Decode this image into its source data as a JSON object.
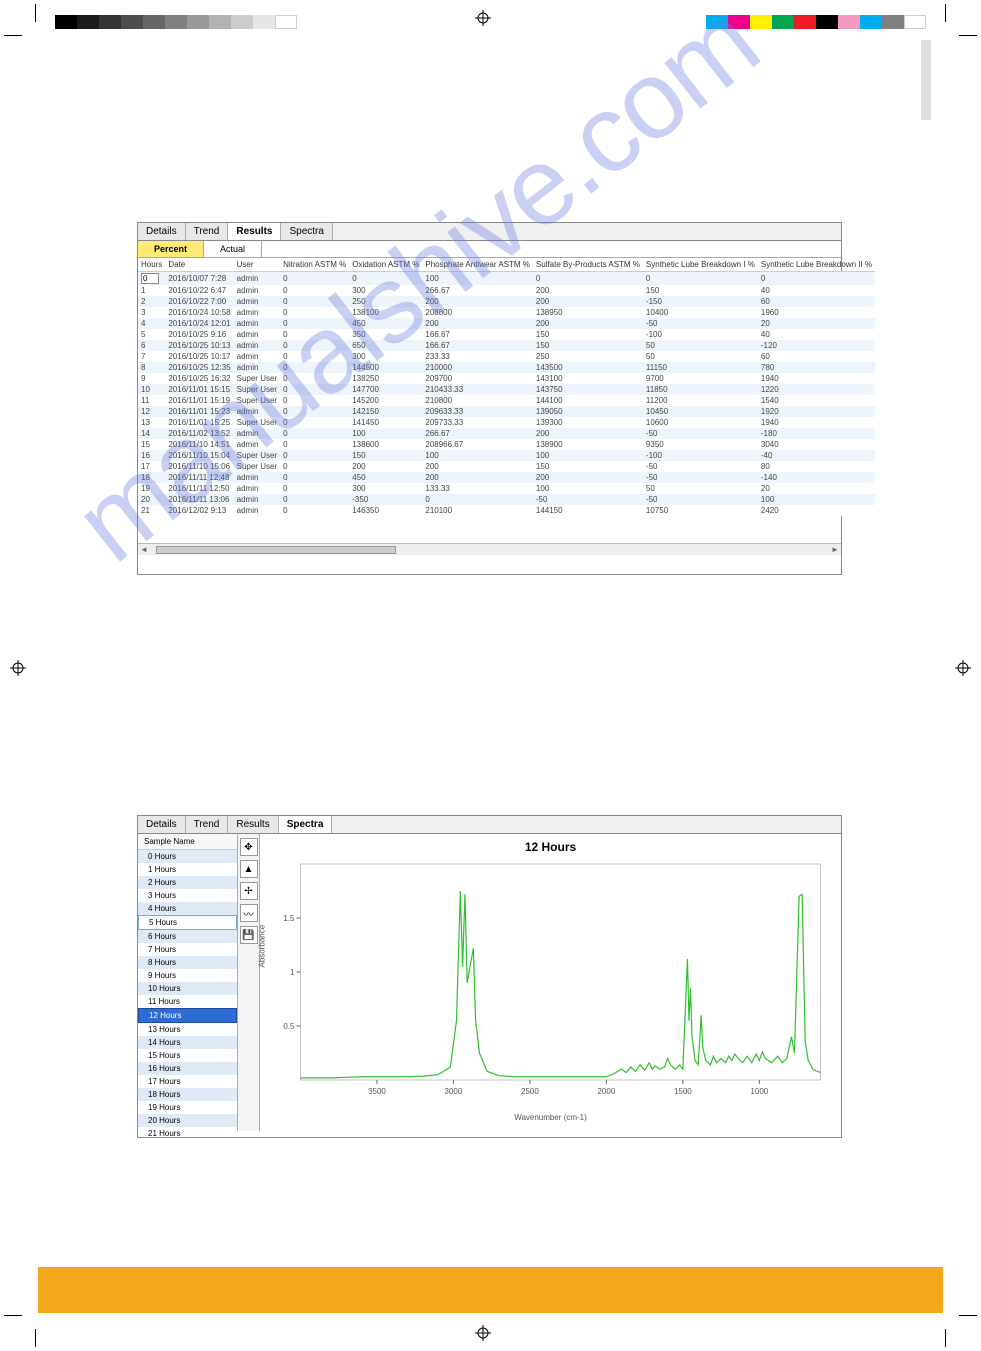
{
  "watermark_text": "manualshive.com",
  "print_marks": {
    "grayscale_swatches": [
      "#000000",
      "#1a1a1a",
      "#333333",
      "#4d4d4d",
      "#666666",
      "#808080",
      "#999999",
      "#b3b3b3",
      "#cccccc",
      "#e6e6e6",
      "#ffffff"
    ],
    "color_swatches": [
      "#00aeef",
      "#ec008c",
      "#fff200",
      "#00a651",
      "#ed1c24",
      "#000000",
      "#f49ac1",
      "#00adee",
      "#808080",
      "#ffffff"
    ]
  },
  "tabs": {
    "details": "Details",
    "trend": "Trend",
    "results": "Results",
    "spectra": "Spectra"
  },
  "results_panel": {
    "active_tab": "Results",
    "subtabs": {
      "percent": "Percent",
      "actual": "Actual",
      "active": "Percent"
    },
    "columns": [
      "Hours",
      "Date",
      "User",
      "Nitration ASTM  %",
      "Oxidation ASTM  %",
      "Phosphate Antiwear ASTM  %",
      "Sulfate By-Products ASTM  %",
      "Synthetic Lube Breakdown I %",
      "Synthetic Lube Breakdown II %"
    ],
    "rows": [
      [
        "0",
        "2016/10/07 7:28",
        "admin",
        "0",
        "0",
        "100",
        "0",
        "0",
        "0"
      ],
      [
        "1",
        "2016/10/22 6:47",
        "admin",
        "0",
        "300",
        "266.67",
        "200",
        "150",
        "40"
      ],
      [
        "2",
        "2016/10/22 7:00",
        "admin",
        "0",
        "250",
        "200",
        "200",
        "-150",
        "60"
      ],
      [
        "3",
        "2016/10/24 10:58",
        "admin",
        "0",
        "138100",
        "208800",
        "138950",
        "10400",
        "1960"
      ],
      [
        "4",
        "2016/10/24 12:01",
        "admin",
        "0",
        "450",
        "200",
        "200",
        "-50",
        "20"
      ],
      [
        "5",
        "2016/10/25 9:16",
        "admin",
        "0",
        "350",
        "166.67",
        "150",
        "-100",
        "40"
      ],
      [
        "6",
        "2016/10/25 10:13",
        "admin",
        "0",
        "650",
        "166.67",
        "150",
        "50",
        "-120"
      ],
      [
        "7",
        "2016/10/25 10:17",
        "admin",
        "0",
        "300",
        "233.33",
        "250",
        "50",
        "60"
      ],
      [
        "8",
        "2016/10/25 12:35",
        "admin",
        "0",
        "144500",
        "210000",
        "143500",
        "11150",
        "780"
      ],
      [
        "9",
        "2016/10/25 16:32",
        "Super User",
        "0",
        "138250",
        "209700",
        "143100",
        "9700",
        "1940"
      ],
      [
        "10",
        "2016/11/01 15:15",
        "Super User",
        "0",
        "147700",
        "210433.33",
        "143750",
        "11850",
        "1220"
      ],
      [
        "11",
        "2016/11/01 15:19",
        "Super User",
        "0",
        "145200",
        "210800",
        "144100",
        "11200",
        "1540"
      ],
      [
        "12",
        "2016/11/01 15:23",
        "admin",
        "0",
        "142150",
        "209633.33",
        "139050",
        "10450",
        "1920"
      ],
      [
        "13",
        "2016/11/01 15:25",
        "Super User",
        "0",
        "141450",
        "209733.33",
        "139300",
        "10600",
        "1940"
      ],
      [
        "14",
        "2016/11/02 13:52",
        "admin",
        "0",
        "100",
        "266.67",
        "200",
        "-50",
        "-180"
      ],
      [
        "15",
        "2016/11/10 14:51",
        "admin",
        "0",
        "138600",
        "208966.67",
        "138900",
        "9350",
        "3040"
      ],
      [
        "16",
        "2016/11/10 15:04",
        "Super User",
        "0",
        "150",
        "100",
        "100",
        "-100",
        "-40"
      ],
      [
        "17",
        "2016/11/10 15:06",
        "Super User",
        "0",
        "200",
        "200",
        "150",
        "-50",
        "80"
      ],
      [
        "18",
        "2016/11/11 12:48",
        "admin",
        "0",
        "450",
        "200",
        "200",
        "-50",
        "-140"
      ],
      [
        "19",
        "2016/11/11 12:50",
        "admin",
        "0",
        "300",
        "133.33",
        "100",
        "50",
        "20"
      ],
      [
        "20",
        "2016/11/11 13:06",
        "admin",
        "0",
        "-350",
        "0",
        "-50",
        "-50",
        "100"
      ],
      [
        "21",
        "2016/12/02 9:13",
        "admin",
        "0",
        "146350",
        "210100",
        "144150",
        "10750",
        "2420"
      ]
    ]
  },
  "spectra_panel": {
    "active_tab": "Spectra",
    "sample_header": "Sample Name",
    "samples": [
      "0 Hours",
      "1 Hours",
      "2 Hours",
      "3 Hours",
      "4 Hours",
      "5 Hours",
      "6 Hours",
      "7 Hours",
      "8 Hours",
      "9 Hours",
      "10 Hours",
      "11 Hours",
      "12 Hours",
      "13 Hours",
      "14 Hours",
      "15 Hours",
      "16 Hours",
      "17 Hours",
      "18 Hours",
      "19 Hours",
      "20 Hours",
      "21 Hours"
    ],
    "selected_index": 12,
    "boxed_index": 5,
    "tools": [
      "move",
      "eject",
      "pan",
      "zoom",
      "save"
    ],
    "chart": {
      "title": "12 Hours",
      "ylabel": "Absorbance",
      "xlabel": "Wavenumber (cm-1)",
      "line_color": "#2fbf2f",
      "background_color": "#ffffff",
      "grid_color": "#cccccc",
      "x_reversed": true,
      "xlim": [
        600,
        4000
      ],
      "ylim": [
        0,
        2.0
      ],
      "xticks": [
        3500,
        3000,
        2500,
        2000,
        1500,
        1000
      ],
      "yticks": [
        0.5,
        1.0,
        1.5
      ],
      "title_fontsize": 12,
      "label_fontsize": 8,
      "line_width": 1.2,
      "data": [
        [
          4000,
          0.02
        ],
        [
          3900,
          0.02
        ],
        [
          3800,
          0.02
        ],
        [
          3700,
          0.025
        ],
        [
          3600,
          0.03
        ],
        [
          3500,
          0.03
        ],
        [
          3400,
          0.03
        ],
        [
          3300,
          0.03
        ],
        [
          3200,
          0.035
        ],
        [
          3100,
          0.05
        ],
        [
          3020,
          0.12
        ],
        [
          2980,
          0.55
        ],
        [
          2955,
          1.75
        ],
        [
          2940,
          1.05
        ],
        [
          2925,
          1.72
        ],
        [
          2910,
          0.9
        ],
        [
          2870,
          1.22
        ],
        [
          2855,
          0.55
        ],
        [
          2830,
          0.25
        ],
        [
          2780,
          0.08
        ],
        [
          2700,
          0.04
        ],
        [
          2600,
          0.03
        ],
        [
          2500,
          0.03
        ],
        [
          2400,
          0.03
        ],
        [
          2300,
          0.03
        ],
        [
          2200,
          0.03
        ],
        [
          2100,
          0.03
        ],
        [
          2000,
          0.03
        ],
        [
          1950,
          0.06
        ],
        [
          1900,
          0.1
        ],
        [
          1870,
          0.07
        ],
        [
          1840,
          0.12
        ],
        [
          1810,
          0.08
        ],
        [
          1780,
          0.14
        ],
        [
          1750,
          0.09
        ],
        [
          1720,
          0.16
        ],
        [
          1700,
          0.1
        ],
        [
          1680,
          0.13
        ],
        [
          1650,
          0.1
        ],
        [
          1620,
          0.12
        ],
        [
          1600,
          0.2
        ],
        [
          1580,
          0.14
        ],
        [
          1550,
          0.1
        ],
        [
          1520,
          0.14
        ],
        [
          1500,
          0.1
        ],
        [
          1470,
          1.12
        ],
        [
          1460,
          0.55
        ],
        [
          1450,
          0.85
        ],
        [
          1440,
          0.4
        ],
        [
          1420,
          0.18
        ],
        [
          1400,
          0.14
        ],
        [
          1380,
          0.6
        ],
        [
          1370,
          0.3
        ],
        [
          1350,
          0.18
        ],
        [
          1320,
          0.14
        ],
        [
          1300,
          0.22
        ],
        [
          1280,
          0.16
        ],
        [
          1250,
          0.2
        ],
        [
          1220,
          0.16
        ],
        [
          1200,
          0.22
        ],
        [
          1180,
          0.18
        ],
        [
          1160,
          0.24
        ],
        [
          1140,
          0.2
        ],
        [
          1110,
          0.16
        ],
        [
          1080,
          0.22
        ],
        [
          1050,
          0.16
        ],
        [
          1020,
          0.24
        ],
        [
          1000,
          0.18
        ],
        [
          980,
          0.26
        ],
        [
          960,
          0.2
        ],
        [
          920,
          0.16
        ],
        [
          880,
          0.22
        ],
        [
          850,
          0.16
        ],
        [
          820,
          0.2
        ],
        [
          790,
          0.4
        ],
        [
          770,
          0.25
        ],
        [
          740,
          1.7
        ],
        [
          720,
          1.72
        ],
        [
          700,
          0.35
        ],
        [
          680,
          0.18
        ],
        [
          650,
          0.1
        ],
        [
          620,
          0.08
        ],
        [
          600,
          0.07
        ]
      ]
    }
  },
  "footer_bar_color": "#f5a81c"
}
